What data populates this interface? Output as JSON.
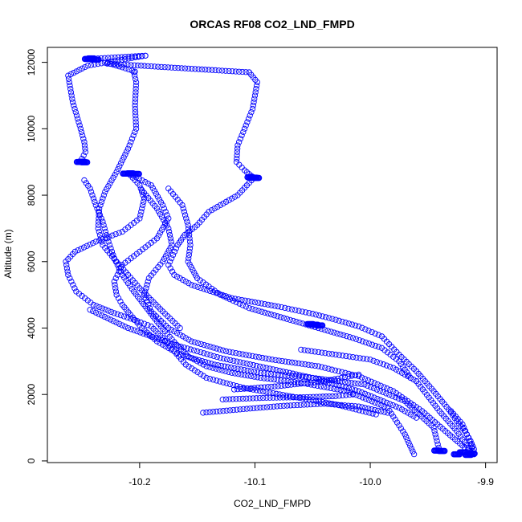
{
  "chart_data": {
    "type": "scatter",
    "title": "ORCAS RF08 CO2_LND_FMPD",
    "xlabel": "CO2_LND_FMPD",
    "ylabel": "Altitude (m)",
    "xlim": [
      -10.28,
      -9.89
    ],
    "ylim": [
      -50,
      12450
    ],
    "x_ticks": [
      -10.2,
      -10.1,
      -10.0,
      -9.9
    ],
    "x_tick_labels": [
      "-10.2",
      "-10.1",
      "-10.0",
      "-9.9"
    ],
    "y_ticks": [
      0,
      2000,
      4000,
      6000,
      8000,
      10000,
      12000
    ],
    "y_tick_labels": [
      "0",
      "2000",
      "4000",
      "6000",
      "8000",
      "10000",
      "12000"
    ],
    "marker": "open-circle",
    "series_color": "#0000ff",
    "grid": false,
    "series": [
      {
        "segments": [
          {
            "x": [
              -10.245,
              -10.195
            ],
            "y": [
              12100,
              12200
            ]
          },
          {
            "x": [
              -10.195,
              -10.245,
              -10.262,
              -10.258,
              -10.252,
              -10.248,
              -10.247,
              -10.25,
              -10.252
            ],
            "y": [
              12200,
              11900,
              11600,
              10800,
              10100,
              9600,
              9300,
              9100,
              9000
            ]
          },
          {
            "x": [
              -10.228,
              -10.215,
              -10.204
            ],
            "y": [
              11980,
              11850,
              11720
            ]
          },
          {
            "x": [
              -10.228,
              -10.105
            ],
            "y": [
              11960,
              11700
            ]
          },
          {
            "x": [
              -10.105,
              -10.098,
              -10.102,
              -10.109,
              -10.115,
              -10.116,
              -10.109,
              -10.101
            ],
            "y": [
              11700,
              11400,
              10600,
              10000,
              9500,
              9000,
              8750,
              8520
            ]
          },
          {
            "x": [
              -10.101,
              -10.115,
              -10.14,
              -10.15,
              -10.161,
              -10.167,
              -10.171,
              -10.175,
              -10.17,
              -10.155,
              -10.12,
              -10.08,
              -10.05,
              -10.03,
              -10.01,
              -9.99,
              -9.975,
              -9.96,
              -9.945,
              -9.932,
              -9.925,
              -9.918,
              -9.913,
              -9.91
            ],
            "y": [
              8520,
              8000,
              7500,
              7100,
              6800,
              6500,
              6200,
              5900,
              5600,
              5300,
              4900,
              4650,
              4430,
              4250,
              4050,
              3750,
              3200,
              2700,
              2100,
              1550,
              1200,
              900,
              600,
              350
            ]
          },
          {
            "x": [
              -10.205,
              -10.203,
              -10.204,
              -10.203,
              -10.21,
              -10.22,
              -10.23,
              -10.235,
              -10.236,
              -10.232,
              -10.22,
              -10.2,
              -10.18,
              -10.165
            ],
            "y": [
              11700,
              11400,
              10700,
              10000,
              9400,
              8700,
              8100,
              7600,
              7000,
              6500,
              6000,
              5200,
              4500,
              4000
            ]
          },
          {
            "x": [
              -10.248,
              -10.243,
              -10.238,
              -10.232,
              -10.228,
              -10.222,
              -10.215,
              -10.205,
              -10.195,
              -10.185,
              -10.178,
              -10.168,
              -10.158,
              -10.142,
              -10.12,
              -10.095,
              -10.06,
              -10.02,
              -9.985,
              -9.97,
              -9.962
            ],
            "y": [
              8450,
              8200,
              7700,
              7200,
              6700,
              6100,
              5600,
              5100,
              4650,
              4200,
              3900,
              3500,
              3150,
              2850,
              2650,
              2500,
              2350,
              2100,
              1600,
              800,
              200
            ]
          },
          {
            "x": [
              -10.208,
              -10.2,
              -10.196,
              -10.2,
              -10.215,
              -10.238,
              -10.256,
              -10.264,
              -10.262,
              -10.255,
              -10.24,
              -10.222,
              -10.205,
              -10.19,
              -10.18,
              -10.17,
              -10.16,
              -10.142,
              -10.11,
              -10.07,
              -10.03,
              -9.995
            ],
            "y": [
              8600,
              8300,
              7900,
              7300,
              6900,
              6600,
              6300,
              6000,
              5600,
              5100,
              4700,
              4450,
              4250,
              4050,
              3700,
              3300,
              2900,
              2500,
              2200,
              1950,
              1700,
              1400
            ]
          },
          {
            "x": [
              -10.208,
              -10.19,
              -10.18,
              -10.175,
              -10.185,
              -10.2,
              -10.215,
              -10.222,
              -10.22,
              -10.215,
              -10.208,
              -10.198,
              -10.185,
              -10.165,
              -10.135,
              -10.095,
              -10.05,
              -10.005,
              -9.97,
              -9.945,
              -9.94
            ],
            "y": [
              8640,
              8300,
              7700,
              7300,
              6700,
              6300,
              5900,
              5400,
              5000,
              4700,
              4400,
              4000,
              3600,
              3200,
              2900,
              2650,
              2500,
              2300,
              1800,
              1000,
              300
            ]
          },
          {
            "x": [
              -10.198,
              -10.185,
              -10.175,
              -10.172,
              -10.18,
              -10.192,
              -10.196,
              -10.19,
              -10.175,
              -10.155,
              -10.125,
              -10.085,
              -10.045,
              -10.01,
              -9.98,
              -9.955,
              -9.935,
              -9.918,
              -9.91
            ],
            "y": [
              8150,
              7600,
              7000,
              6500,
              6000,
              5500,
              5000,
              4500,
              4000,
              3600,
              3300,
              3050,
              2850,
              2550,
              2100,
              1500,
              900,
              400,
              200
            ]
          },
          {
            "x": [
              -10.175,
              -10.163,
              -10.158,
              -10.156,
              -10.158,
              -10.15,
              -10.13,
              -10.105,
              -10.075,
              -10.045,
              -10.015,
              -9.99,
              -9.975,
              -9.965
            ],
            "y": [
              8200,
              7700,
              7100,
              6500,
              6000,
              5500,
              5000,
              4600,
              4300,
              4000,
              3700,
              3400,
              3000,
              2500
            ]
          },
          {
            "x": [
              -10.243,
              -10.21,
              -10.17,
              -10.13,
              -10.09,
              -10.05,
              -10.01,
              -9.975,
              -9.96
            ],
            "y": [
              4550,
              4000,
              3500,
              3100,
              2800,
              2500,
              2100,
              1600,
              1300
            ]
          },
          {
            "x": [
              -10.145,
              -10.11,
              -10.075,
              -10.04,
              -10.01,
              -9.985
            ],
            "y": [
              1450,
              1560,
              1660,
              1720,
              1640,
              1450
            ]
          },
          {
            "x": [
              -10.128,
              -10.09,
              -10.055,
              -10.03,
              -10.015
            ],
            "y": [
              1850,
              1900,
              1920,
              1950,
              2000
            ]
          },
          {
            "x": [
              -10.118,
              -10.08,
              -10.04,
              -10.01
            ],
            "y": [
              2150,
              2250,
              2400,
              2600
            ]
          },
          {
            "x": [
              -10.06,
              -10.03,
              -10.0,
              -9.98,
              -9.96
            ],
            "y": [
              3350,
              3200,
              3050,
              2800,
              2400
            ]
          },
          {
            "x": [
              -9.96,
              -9.94,
              -9.925,
              -9.915,
              -9.912
            ],
            "y": [
              2400,
              1500,
              900,
              400,
              200
            ]
          },
          {
            "x": [
              -9.93,
              -9.92,
              -9.915,
              -9.912,
              -9.91
            ],
            "y": [
              1500,
              1100,
              700,
              400,
              200
            ]
          }
        ],
        "clusters": [
          {
            "x": [
              -10.245,
              -10.242,
              -10.238
            ],
            "y": [
              12100,
              12120,
              12080
            ]
          },
          {
            "x": [
              -10.252,
              -10.248,
              -10.25
            ],
            "y": [
              9000,
              8990,
              9010
            ]
          },
          {
            "x": [
              -10.212,
              -10.208,
              -10.203
            ],
            "y": [
              8650,
              8660,
              8640
            ]
          },
          {
            "x": [
              -10.104,
              -10.099,
              -10.101
            ],
            "y": [
              8540,
              8520,
              8530
            ]
          },
          {
            "x": [
              -10.048,
              -10.044,
              -10.052
            ],
            "y": [
              4100,
              4080,
              4120
            ]
          },
          {
            "x": [
              -9.938,
              -9.942
            ],
            "y": [
              300,
              310
            ]
          },
          {
            "x": [
              -9.925,
              -9.915,
              -9.912,
              -9.92
            ],
            "y": [
              200,
              180,
              220,
              260
            ]
          }
        ]
      }
    ]
  }
}
